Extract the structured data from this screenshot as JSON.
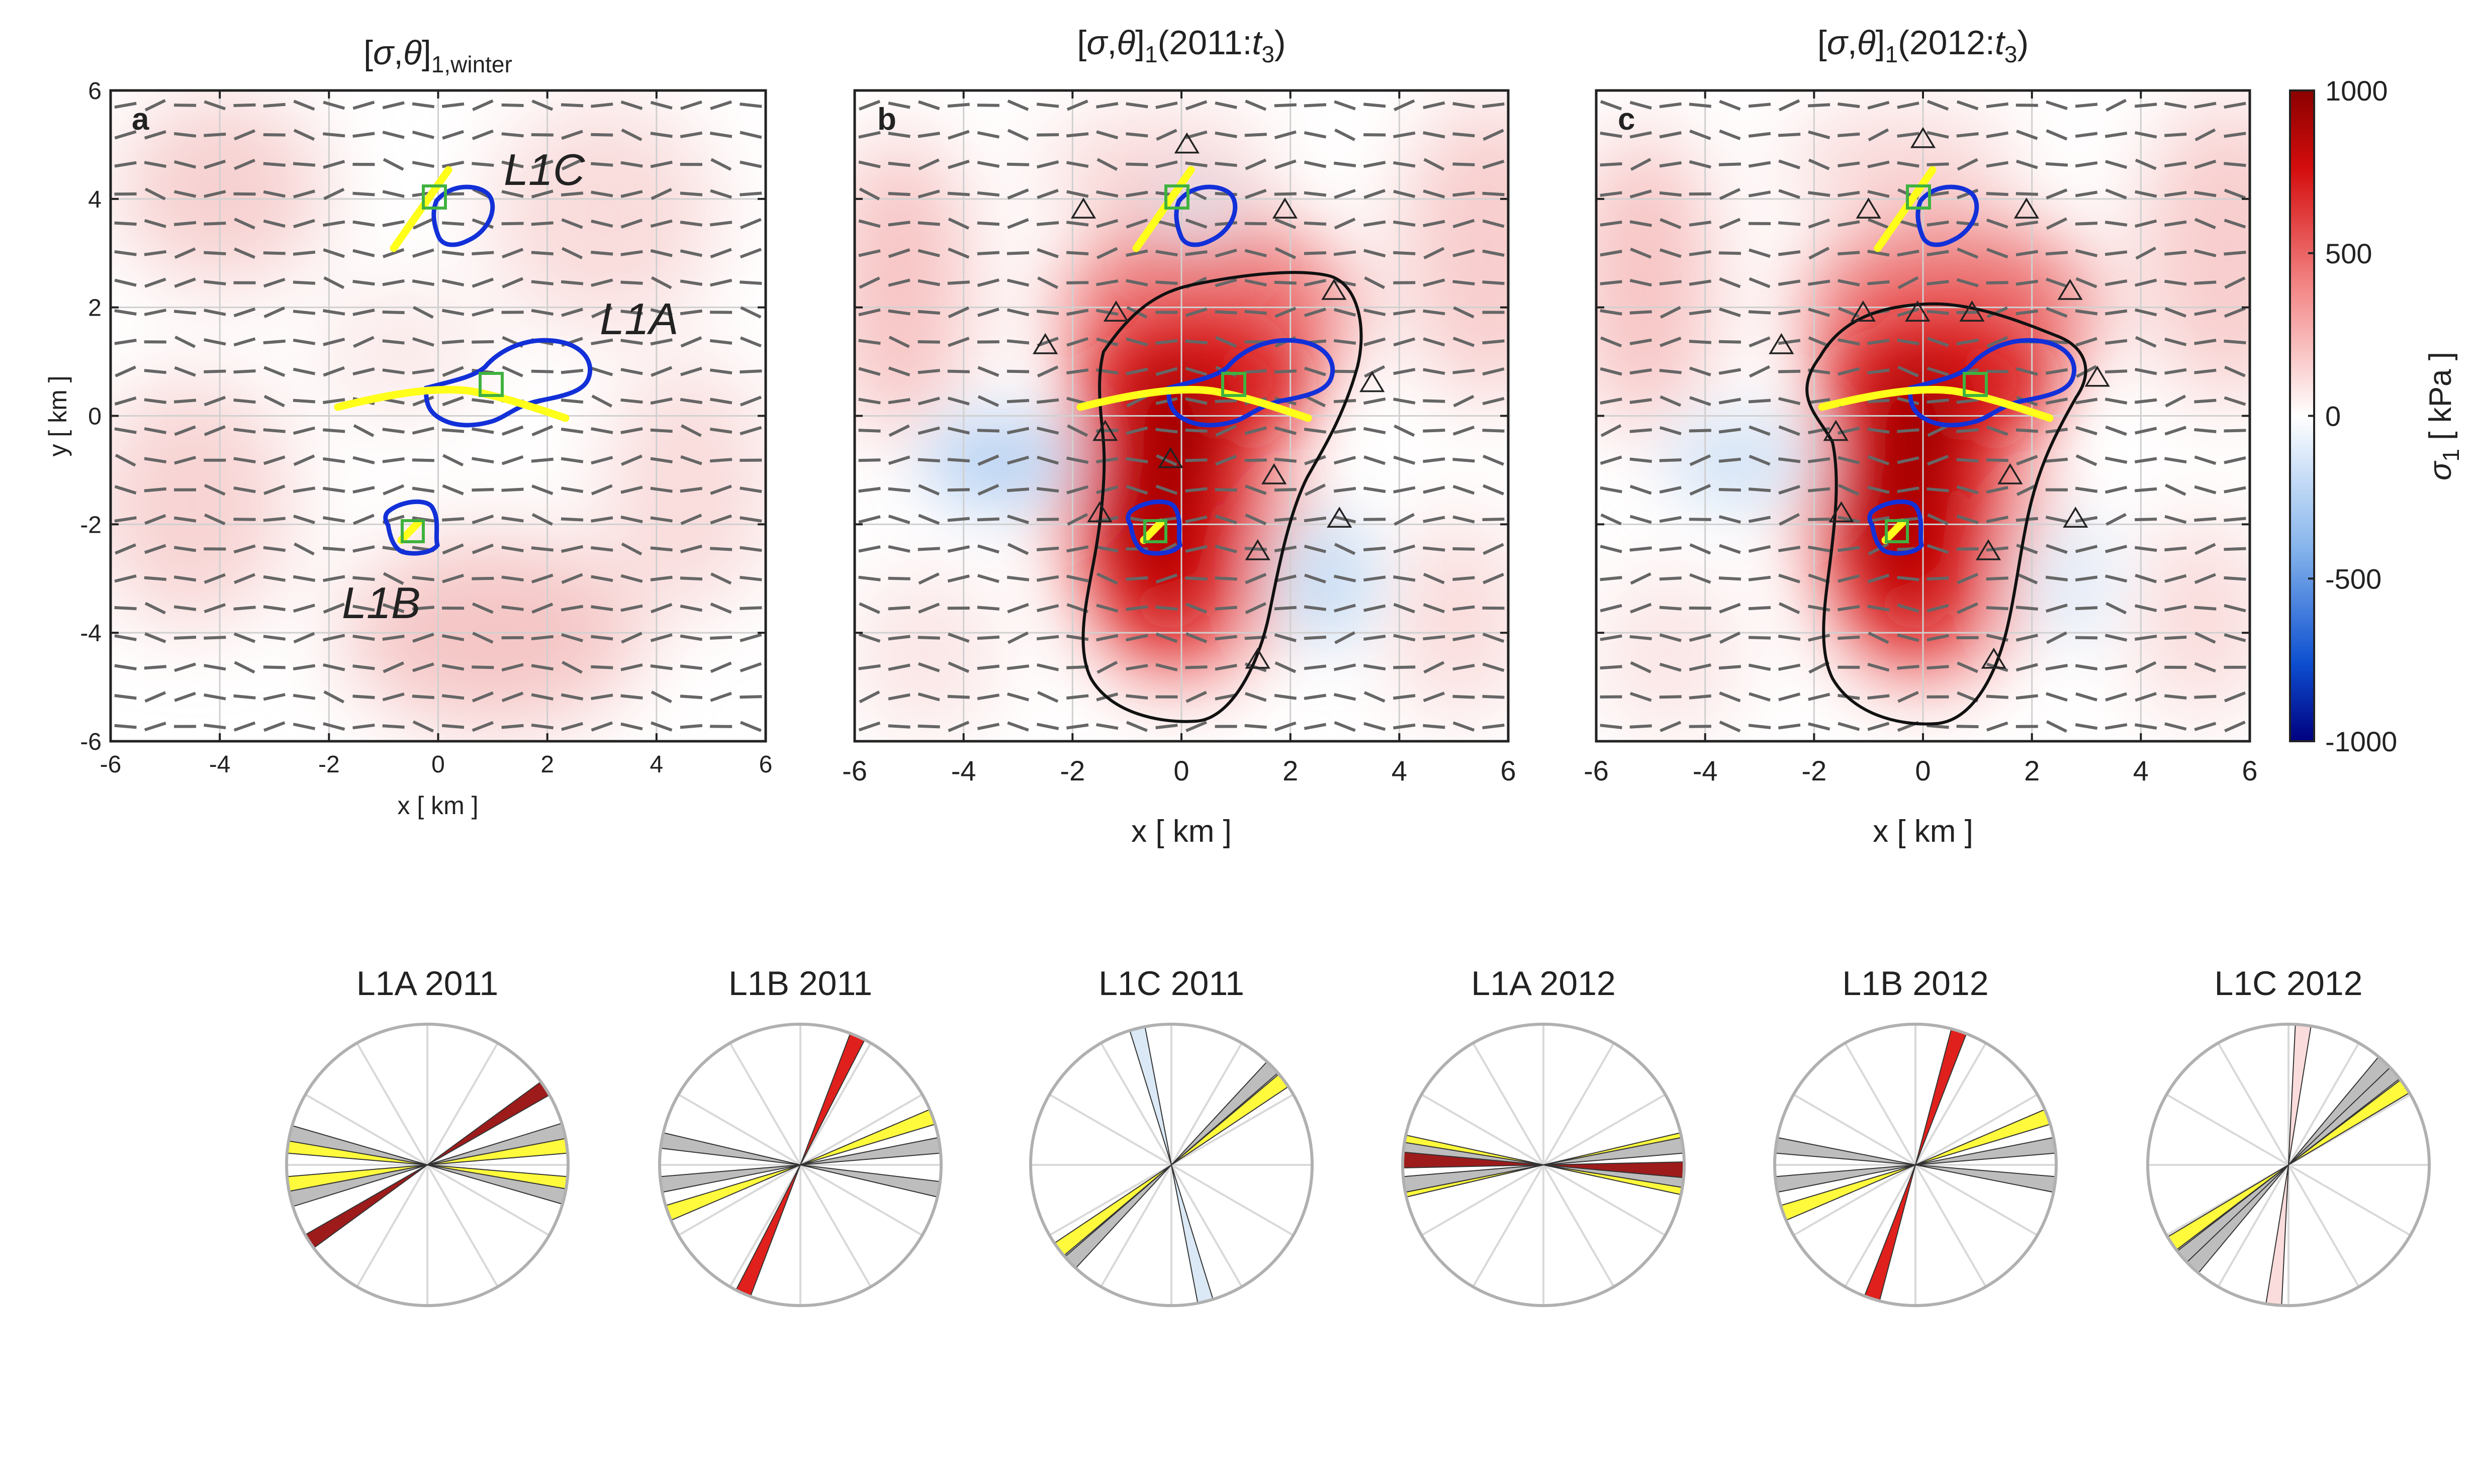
{
  "chart_data": [
    {
      "type": "heatmap",
      "panel": "a",
      "title": "[σ,θ]1,winter",
      "xlabel": "x [ km ]",
      "ylabel": "y [ km ]",
      "xlim": [
        -6,
        6
      ],
      "ylim": [
        -6,
        6
      ],
      "x_ticks": [
        "-6",
        "-4",
        "-2",
        "0",
        "2",
        "4",
        "6"
      ],
      "y_ticks": [
        "6",
        "4",
        "2",
        "0",
        "-2",
        "-4",
        "-6"
      ],
      "grid": true,
      "max_sigma1_kPa": 200,
      "labels": [
        {
          "text": "L1C",
          "x": 2.0,
          "y": 4.5
        },
        {
          "text": "L1A",
          "x": 3.8,
          "y": 1.7
        },
        {
          "text": "L1B",
          "x": -1.0,
          "y": -3.6
        }
      ],
      "has_contour": false,
      "stations": []
    },
    {
      "type": "heatmap",
      "panel": "b",
      "title": "[σ,θ]1(2011:t3)",
      "xlabel": "x [ km ]",
      "ylabel": "",
      "xlim": [
        -6,
        6
      ],
      "ylim": [
        -6,
        6
      ],
      "x_ticks": [
        "-6",
        "-4",
        "-2",
        "0",
        "2",
        "4",
        "6"
      ],
      "y_ticks": [],
      "grid": true,
      "max_sigma1_kPa": 1000,
      "labels": [],
      "has_contour": true,
      "stations": [
        [
          0.1,
          5.0
        ],
        [
          -1.8,
          3.8
        ],
        [
          -1.2,
          1.9
        ],
        [
          -2.5,
          1.3
        ],
        [
          -1.4,
          -0.3
        ],
        [
          -0.2,
          -0.8
        ],
        [
          -1.5,
          -1.8
        ],
        [
          1.9,
          3.8
        ],
        [
          2.8,
          2.3
        ],
        [
          3.5,
          0.6
        ],
        [
          1.7,
          -1.1
        ],
        [
          2.9,
          -1.9
        ],
        [
          1.4,
          -2.5
        ],
        [
          1.4,
          -4.5
        ]
      ]
    },
    {
      "type": "heatmap",
      "panel": "c",
      "title": "[σ,θ]1(2012:t3)",
      "xlabel": "x [ km ]",
      "ylabel": "",
      "xlim": [
        -6,
        6
      ],
      "ylim": [
        -6,
        6
      ],
      "x_ticks": [
        "-6",
        "-4",
        "-2",
        "0",
        "2",
        "4",
        "6"
      ],
      "y_ticks": [],
      "grid": true,
      "max_sigma1_kPa": 1000,
      "labels": [],
      "has_contour": true,
      "stations": [
        [
          0.0,
          5.1
        ],
        [
          -1.0,
          3.8
        ],
        [
          1.9,
          3.8
        ],
        [
          -1.1,
          1.9
        ],
        [
          -0.1,
          1.9
        ],
        [
          0.9,
          1.9
        ],
        [
          -2.6,
          1.3
        ],
        [
          2.7,
          2.3
        ],
        [
          3.2,
          0.7
        ],
        [
          -1.6,
          -0.3
        ],
        [
          1.6,
          -1.1
        ],
        [
          2.8,
          -1.9
        ],
        [
          -1.5,
          -1.8
        ],
        [
          1.2,
          -2.5
        ],
        [
          1.3,
          -4.5
        ]
      ]
    },
    {
      "type": "colorbar",
      "label": "σ1 [ kPa ]",
      "range": [
        -1000,
        1000
      ],
      "tick_labels": [
        "1000",
        "500",
        "0",
        "-500",
        "-1000"
      ],
      "colors": {
        "low": "#00007f",
        "mid": "#ffffff",
        "high": "#8b0000"
      }
    },
    {
      "type": "rose",
      "title": "L1A 2011",
      "wedges": [
        {
          "type": "yellow",
          "angle": 8
        },
        {
          "type": "yellow",
          "angle": 172
        },
        {
          "type": "grey",
          "angle": 14
        },
        {
          "type": "grey",
          "angle": 167
        },
        {
          "type": "red",
          "angle": 33
        }
      ]
    },
    {
      "type": "rose",
      "title": "L1B 2011",
      "wedges": [
        {
          "type": "yellow",
          "angle": 20
        },
        {
          "type": "grey",
          "angle": 8
        },
        {
          "type": "grey",
          "angle": 170
        },
        {
          "type": "red",
          "angle": 66
        }
      ]
    },
    {
      "type": "rose",
      "title": "L1C 2011",
      "wedges": [
        {
          "type": "yellow",
          "angle": 37
        },
        {
          "type": "grey",
          "angle": 44
        },
        {
          "type": "lightblue",
          "angle": 104
        }
      ]
    },
    {
      "type": "rose",
      "title": "L1A 2012",
      "wedges": [
        {
          "type": "yellow",
          "angle": 171
        },
        {
          "type": "yellow",
          "angle": 10
        },
        {
          "type": "grey",
          "angle": 8
        },
        {
          "type": "grey",
          "angle": 174
        },
        {
          "type": "red",
          "angle": 178
        }
      ]
    },
    {
      "type": "rose",
      "title": "L1B 2012",
      "wedges": [
        {
          "type": "yellow",
          "angle": 20
        },
        {
          "type": "grey",
          "angle": 8
        },
        {
          "type": "grey",
          "angle": 172
        },
        {
          "type": "red",
          "angle": 72
        }
      ]
    },
    {
      "type": "rose",
      "title": "L1C 2012",
      "wedges": [
        {
          "type": "yellow",
          "angle": 34
        },
        {
          "type": "grey",
          "angle": 41
        },
        {
          "type": "grey",
          "angle": 47
        },
        {
          "type": "pink",
          "angle": 84
        }
      ]
    }
  ],
  "colors": {
    "outline_blue": "#1230d8",
    "fault_yellow": "#ffff1a",
    "box_green": "#3fb23f",
    "stick_grey": "#666666",
    "wedge_yellow": "#fffa3c",
    "wedge_grey": "#bdbdbd",
    "wedge_red_dark": "#9e1b1b",
    "wedge_red": "#e0201c",
    "wedge_lightblue": "#dbe9f6",
    "wedge_pink": "#fbdcdc"
  }
}
